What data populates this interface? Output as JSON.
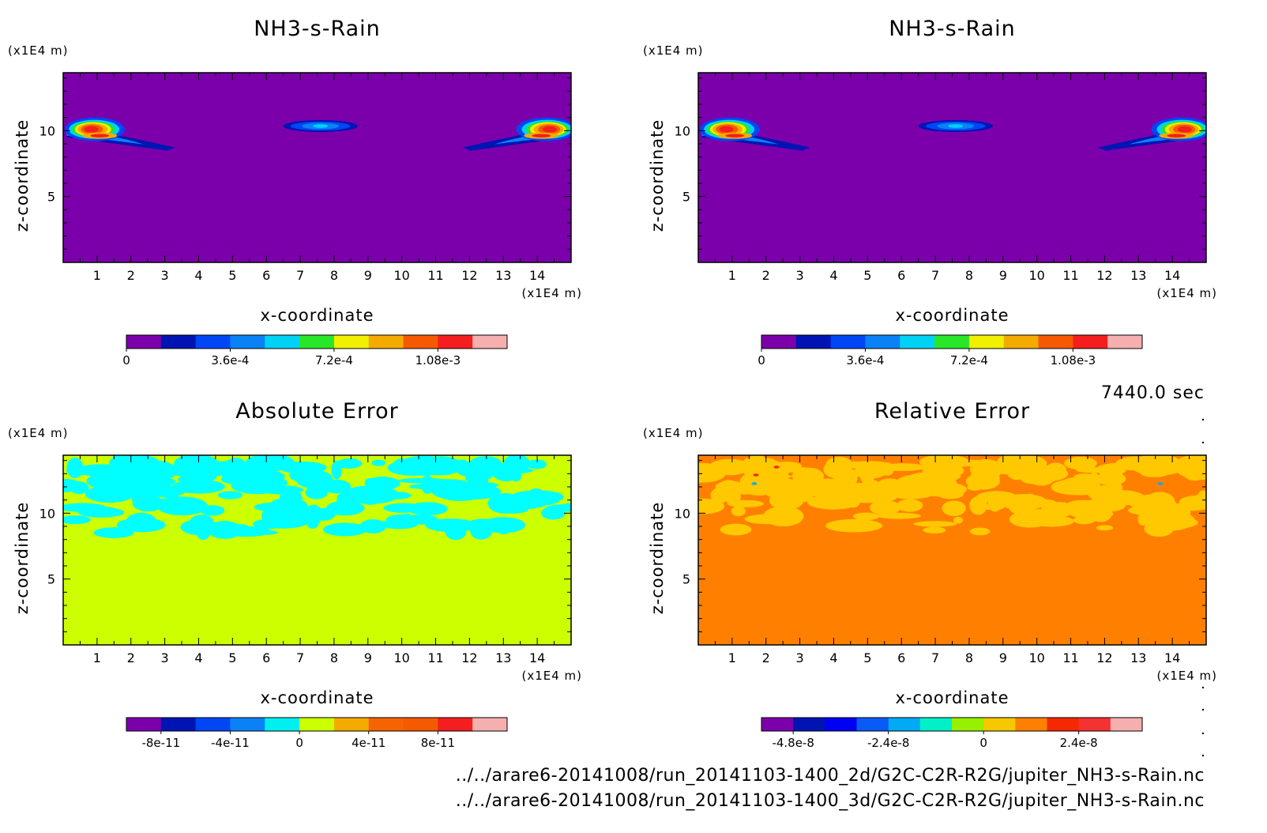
{
  "time_label": "7440.0 sec",
  "file_paths": [
    "../../arare6-20141008/run_20141103-1400_2d/G2C-C2R-R2G/jupiter_NH3-s-Rain.nc",
    "../../arare6-20141008/run_20141103-1400_3d/G2C-C2R-R2G/jupiter_NH3-s-Rain.nc"
  ],
  "chart_data": [
    {
      "type": "heatmap",
      "title": "NH3-s-Rain",
      "xlabel": "x-coordinate",
      "ylabel": "z-coordinate",
      "xunit": "(x1E4 m)",
      "yunit": "(x1E4 m)",
      "xlim": [
        0,
        15
      ],
      "ylim": [
        0,
        14.4
      ],
      "xticks": [
        1,
        2,
        3,
        4,
        5,
        6,
        7,
        8,
        9,
        10,
        11,
        12,
        13,
        14
      ],
      "yticks": [
        5,
        10
      ],
      "background_color": "#7b00ab",
      "features": [
        {
          "kind": "plume",
          "x": [
            0.1,
            3.3
          ],
          "z": [
            8.6,
            10.9
          ],
          "core_x": 0.8,
          "core_z": 10.1
        },
        {
          "kind": "blob",
          "x": [
            6.5,
            8.7
          ],
          "z": [
            9.9,
            10.8
          ],
          "core_x": 7.6,
          "core_z": 10.3
        },
        {
          "kind": "plume",
          "x": [
            11.8,
            15.0
          ],
          "z": [
            8.6,
            10.9
          ],
          "core_x": 14.4,
          "core_z": 10.1
        }
      ],
      "colorbar": {
        "colors": [
          "#7b00ab",
          "#0014b4",
          "#0046f5",
          "#0a82f5",
          "#00d2f5",
          "#28e628",
          "#f0f000",
          "#f5aa00",
          "#f55a00",
          "#f51e1e",
          "#f5afaf"
        ],
        "tick_values": [
          0,
          0.00036,
          0.00072,
          0.00108
        ],
        "tick_labels": [
          "0",
          "3.6e-4",
          "7.2e-4",
          "1.08e-3"
        ]
      }
    },
    {
      "type": "heatmap",
      "title": "NH3-s-Rain",
      "xlabel": "x-coordinate",
      "ylabel": "z-coordinate",
      "xunit": "(x1E4 m)",
      "yunit": "(x1E4 m)",
      "xlim": [
        0,
        15
      ],
      "ylim": [
        0,
        14.4
      ],
      "xticks": [
        1,
        2,
        3,
        4,
        5,
        6,
        7,
        8,
        9,
        10,
        11,
        12,
        13,
        14
      ],
      "yticks": [
        5,
        10
      ],
      "background_color": "#7b00ab",
      "features": [
        {
          "kind": "plume",
          "x": [
            0.1,
            3.3
          ],
          "z": [
            8.6,
            10.9
          ],
          "core_x": 0.8,
          "core_z": 10.1
        },
        {
          "kind": "blob",
          "x": [
            6.5,
            8.7
          ],
          "z": [
            9.9,
            10.8
          ],
          "core_x": 7.6,
          "core_z": 10.3
        },
        {
          "kind": "plume",
          "x": [
            11.8,
            15.0
          ],
          "z": [
            8.6,
            10.9
          ],
          "core_x": 14.4,
          "core_z": 10.1
        }
      ],
      "colorbar": {
        "colors": [
          "#7b00ab",
          "#0014b4",
          "#0046f5",
          "#0a82f5",
          "#00d2f5",
          "#28e628",
          "#f0f000",
          "#f5aa00",
          "#f55a00",
          "#f51e1e",
          "#f5afaf"
        ],
        "tick_values": [
          0,
          0.00036,
          0.00072,
          0.00108
        ],
        "tick_labels": [
          "0",
          "3.6e-4",
          "7.2e-4",
          "1.08e-3"
        ]
      }
    },
    {
      "type": "heatmap",
      "title": "Absolute Error",
      "xlabel": "x-coordinate",
      "ylabel": "z-coordinate",
      "xunit": "(x1E4 m)",
      "yunit": "(x1E4 m)",
      "xlim": [
        0,
        15
      ],
      "ylim": [
        0,
        14.4
      ],
      "xticks": [
        1,
        2,
        3,
        4,
        5,
        6,
        7,
        8,
        9,
        10,
        11,
        12,
        13,
        14
      ],
      "yticks": [
        5,
        10
      ],
      "background_color": "#ccff00",
      "noise_band": {
        "z": [
          8.5,
          13.9
        ],
        "color": "#00ffff"
      },
      "colorbar": {
        "colors": [
          "#7b00ab",
          "#0014b4",
          "#0046f5",
          "#0a82f5",
          "#00f0f0",
          "#ccff00",
          "#f5aa00",
          "#f56400",
          "#f55a00",
          "#f51e1e",
          "#f5afaf"
        ],
        "tick_values": [
          -8e-11,
          -4e-11,
          0,
          4e-11,
          8e-11
        ],
        "tick_labels": [
          "-8e-11",
          "-4e-11",
          "0",
          "4e-11",
          "8e-11"
        ]
      }
    },
    {
      "type": "heatmap",
      "title": "Relative Error",
      "xlabel": "x-coordinate",
      "ylabel": "z-coordinate",
      "xunit": "(x1E4 m)",
      "yunit": "(x1E4 m)",
      "xlim": [
        0,
        15
      ],
      "ylim": [
        0,
        14.4
      ],
      "xticks": [
        1,
        2,
        3,
        4,
        5,
        6,
        7,
        8,
        9,
        10,
        11,
        12,
        13,
        14
      ],
      "yticks": [
        5,
        10
      ],
      "background_color": "#ff8000",
      "noise_band": {
        "z": [
          8.5,
          13.9
        ],
        "color": "#ffc800"
      },
      "colorbar": {
        "colors": [
          "#7b00ab",
          "#0014b4",
          "#0000f5",
          "#0a5af5",
          "#00aaf5",
          "#00f0c8",
          "#96f000",
          "#f5c800",
          "#ff8000",
          "#f52800",
          "#f53232",
          "#f5afaf"
        ],
        "tick_values": [
          -4.8e-08,
          -2.4e-08,
          0,
          2.4e-08
        ],
        "tick_labels": [
          "-4.8e-8",
          "-2.4e-8",
          "0",
          "2.4e-8"
        ]
      }
    }
  ]
}
